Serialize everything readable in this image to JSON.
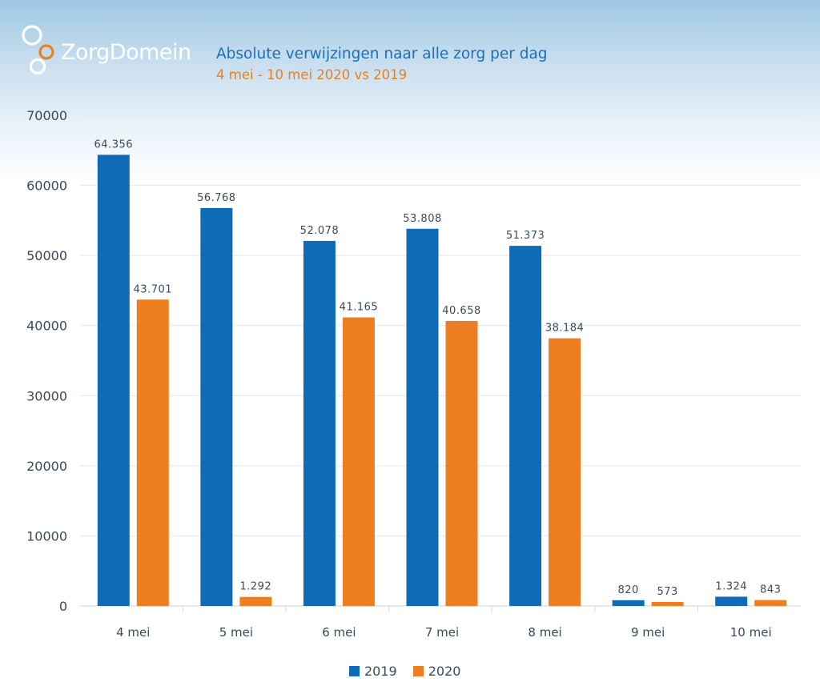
{
  "brand": {
    "name": "ZorgDomein",
    "colors": {
      "ring": "#ffffff",
      "accent_ring": "#e8811f"
    }
  },
  "chart_data": {
    "type": "bar",
    "title": "Absolute verwijzingen naar alle zorg per dag",
    "subtitle": "4 mei - 10 mei 2020 vs 2019",
    "xlabel": "",
    "ylabel": "",
    "ylim": [
      0,
      70000
    ],
    "yticks": [
      0,
      10000,
      20000,
      30000,
      40000,
      50000,
      60000,
      70000
    ],
    "ytick_labels": [
      "0",
      "10000",
      "20000",
      "30000",
      "40000",
      "50000",
      "60000",
      "70000"
    ],
    "grid": true,
    "legend_position": "bottom-center",
    "categories": [
      "4 mei",
      "5 mei",
      "6 mei",
      "7 mei",
      "8 mei",
      "9 mei",
      "10 mei"
    ],
    "series": [
      {
        "name": "2019",
        "color": "#0f6bb6",
        "values": [
          64356,
          56768,
          52078,
          53808,
          51373,
          820,
          1324
        ],
        "labels": [
          "64.356",
          "56.768",
          "52.078",
          "53.808",
          "51.373",
          "820",
          "1.324"
        ]
      },
      {
        "name": "2020",
        "color": "#ef7d22",
        "values": [
          43701,
          1292,
          41165,
          40658,
          38184,
          573,
          843
        ],
        "labels": [
          "43.701",
          "1.292",
          "41.165",
          "40.658",
          "38.184",
          "573",
          "843"
        ]
      }
    ]
  }
}
